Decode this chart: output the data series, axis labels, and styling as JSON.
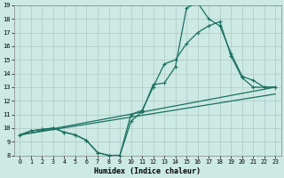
{
  "xlabel": "Humidex (Indice chaleur)",
  "xlim": [
    -0.5,
    23.5
  ],
  "ylim": [
    8,
    19
  ],
  "xticks": [
    0,
    1,
    2,
    3,
    4,
    5,
    6,
    7,
    8,
    9,
    10,
    11,
    12,
    13,
    14,
    15,
    16,
    17,
    18,
    19,
    20,
    21,
    22,
    23
  ],
  "yticks": [
    8,
    9,
    10,
    11,
    12,
    13,
    14,
    15,
    16,
    17,
    18,
    19
  ],
  "bg_color": "#cce9e3",
  "grid_color": "#b0c8c4",
  "line_color": "#1a7060",
  "line1": {
    "x": [
      0,
      1,
      2,
      3,
      4,
      5,
      6,
      7,
      8,
      9,
      10,
      11,
      12,
      13,
      14,
      15,
      16,
      17,
      18,
      19,
      20,
      21,
      22,
      23
    ],
    "y": [
      9.5,
      9.8,
      9.9,
      10.0,
      9.7,
      9.5,
      9.1,
      8.2,
      8.0,
      8.0,
      10.5,
      11.2,
      13.2,
      13.3,
      14.5,
      18.8,
      19.2,
      18.0,
      17.5,
      15.5,
      13.8,
      13.5,
      13.0,
      13.0
    ]
  },
  "line2": {
    "x": [
      0,
      1,
      2,
      3,
      4,
      5,
      6,
      7,
      8,
      9,
      10,
      11,
      12,
      13,
      14,
      15,
      16,
      17,
      18,
      19,
      20,
      21,
      22,
      23
    ],
    "y": [
      9.5,
      9.8,
      9.9,
      10.0,
      9.7,
      9.5,
      9.1,
      8.2,
      8.0,
      8.0,
      11.0,
      11.3,
      13.0,
      14.7,
      15.0,
      16.2,
      17.0,
      17.5,
      17.8,
      15.3,
      13.7,
      13.0,
      13.0,
      13.0
    ]
  },
  "ref1": {
    "x": [
      0,
      23
    ],
    "y": [
      9.5,
      13.0
    ]
  },
  "ref2": {
    "x": [
      0,
      23
    ],
    "y": [
      9.5,
      12.5
    ]
  }
}
